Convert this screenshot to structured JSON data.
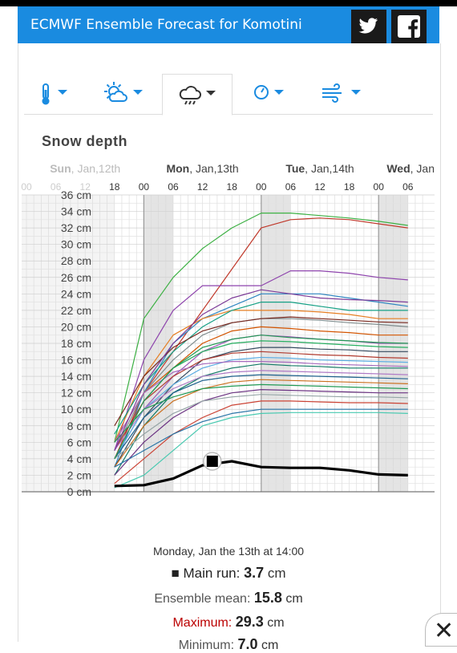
{
  "header": {
    "title": "ECMWF Ensemble Forecast for Komotini"
  },
  "social": {
    "twitter_icon": "twitter-icon",
    "facebook_icon": "facebook-icon"
  },
  "tabs": [
    {
      "icon": "thermometer-icon",
      "active": false
    },
    {
      "icon": "sun-cloud-icon",
      "active": false
    },
    {
      "icon": "rain-cloud-icon",
      "active": true
    },
    {
      "icon": "gauge-icon",
      "active": false
    },
    {
      "icon": "wind-icon",
      "active": false
    }
  ],
  "section": {
    "title": "Snow depth"
  },
  "chart_data": {
    "type": "line",
    "ylabel_unit": "cm",
    "ylim": [
      0,
      36
    ],
    "y_ticks": [
      "0 cm",
      "2 cm",
      "4 cm",
      "6 cm",
      "8 cm",
      "10 cm",
      "12 cm",
      "14 cm",
      "16 cm",
      "18 cm",
      "20 cm",
      "22 cm",
      "24 cm",
      "26 cm",
      "28 cm",
      "30 cm",
      "32 cm",
      "34 cm",
      "36 cm"
    ],
    "day_labels": [
      {
        "day": "Sun",
        "date": ", Jan,12th"
      },
      {
        "day": "Mon",
        "date": ", Jan,13th"
      },
      {
        "day": "Tue",
        "date": ", Jan,14th"
      },
      {
        "day": "Wed",
        "date": ", Jan"
      }
    ],
    "hour_labels": [
      "00",
      "06",
      "12",
      "18",
      "00",
      "06",
      "12",
      "18",
      "00",
      "06",
      "12",
      "18",
      "00",
      "06"
    ],
    "x_hours": [
      0,
      6,
      12,
      18,
      24,
      30,
      36,
      42,
      48,
      54,
      60,
      66,
      72,
      78
    ],
    "main_run": {
      "name": "Main run",
      "x": [
        18,
        24,
        30,
        36,
        42,
        48,
        54,
        60,
        66,
        72,
        78
      ],
      "values": [
        0.7,
        0.8,
        1.6,
        3.2,
        3.7,
        3.0,
        2.9,
        2.9,
        2.6,
        2.1,
        2.0
      ]
    },
    "ensemble": {
      "x": [
        18,
        24,
        30,
        36,
        42,
        48,
        54,
        60,
        66,
        72,
        78
      ],
      "members": [
        [
          6,
          21,
          26,
          29.5,
          32,
          33.8,
          33.8,
          33.5,
          33.2,
          32.8,
          32.3
        ],
        [
          4,
          12,
          17,
          22,
          27,
          32,
          33,
          33.2,
          33,
          32.5,
          32
        ],
        [
          5,
          16,
          22,
          25,
          25,
          25,
          26.8,
          26.8,
          26.5,
          26,
          25.7
        ],
        [
          3,
          12,
          18,
          21,
          22.5,
          24,
          24,
          24,
          23.5,
          23,
          22.5
        ],
        [
          6,
          14,
          19,
          21,
          22,
          22,
          22,
          21.8,
          21.5,
          21,
          21
        ],
        [
          7,
          13,
          17,
          20,
          22,
          23,
          23,
          22.5,
          22,
          22,
          22
        ],
        [
          5,
          12,
          16,
          19,
          20.5,
          21,
          21,
          20.8,
          20.5,
          20.3,
          20
        ],
        [
          6,
          12,
          15,
          18,
          19.5,
          20,
          19.8,
          19.5,
          19.3,
          19,
          19
        ],
        [
          4,
          10,
          14,
          17,
          18.5,
          19,
          18.8,
          18.5,
          18.3,
          18,
          18
        ],
        [
          5,
          11,
          15,
          17,
          18,
          18.3,
          18.2,
          18,
          17.8,
          17.6,
          17.5
        ],
        [
          3,
          9,
          13,
          16,
          17,
          17.5,
          17.5,
          17.3,
          17.2,
          17,
          17
        ],
        [
          5,
          11,
          14,
          16,
          16.8,
          17,
          16.8,
          16.6,
          16.5,
          16.3,
          16.2
        ],
        [
          4,
          10,
          13,
          15,
          16,
          16.3,
          16.2,
          16,
          15.9,
          15.8,
          15.7
        ],
        [
          6,
          12,
          14.5,
          15.5,
          15.8,
          15.8,
          15.7,
          15.5,
          15.4,
          15.3,
          15.2
        ],
        [
          2,
          8,
          12,
          14,
          15,
          15.5,
          15.3,
          15.2,
          15,
          15,
          15
        ],
        [
          5,
          10,
          12.5,
          14,
          14.5,
          14.7,
          14.6,
          14.5,
          14.4,
          14.3,
          14.2
        ],
        [
          4,
          9,
          12,
          13.5,
          14,
          14.2,
          14.1,
          14,
          13.9,
          13.8,
          13.7
        ],
        [
          3,
          8,
          11,
          12.5,
          13.3,
          13.6,
          13.5,
          13.4,
          13.3,
          13.2,
          13.1
        ],
        [
          6,
          10,
          11.5,
          12.5,
          12.8,
          13,
          12.9,
          12.8,
          12.7,
          12.6,
          12.5
        ],
        [
          2,
          6,
          9,
          11,
          12,
          12.4,
          12.3,
          12.2,
          12.1,
          12,
          12
        ],
        [
          4,
          7,
          9.5,
          11,
          11.5,
          11.8,
          11.7,
          11.6,
          11.5,
          11.5,
          11.4
        ],
        [
          1,
          4,
          7,
          9,
          10.5,
          11,
          11,
          10.9,
          10.8,
          10.8,
          10.7
        ],
        [
          3,
          5,
          7,
          8.5,
          9.5,
          10,
          10,
          10,
          10,
          10,
          10
        ],
        [
          0.5,
          2,
          5,
          8,
          9,
          9.5,
          9.6,
          9.6,
          9.6,
          9.6,
          9.5
        ],
        [
          8,
          14,
          17.5,
          19.5,
          20.5,
          21,
          21.2,
          21,
          20.8,
          20.6,
          20.5
        ],
        [
          5,
          13,
          18,
          21.5,
          23.5,
          24.5,
          24,
          23.5,
          23.3,
          23.2,
          23
        ],
        [
          4,
          11,
          15,
          17.5,
          18.5,
          19,
          18.7,
          18.5,
          18.3,
          18.1,
          18
        ]
      ]
    }
  },
  "readout": {
    "time": "Monday, Jan the 13th at 14:00",
    "main_label": "Main run:",
    "main_value": "3.7",
    "mean_label": "Ensemble mean:",
    "mean_value": "15.8",
    "max_label": "Maximum:",
    "max_value": "29.3",
    "min_label": "Minimum:",
    "min_value": "7.0",
    "unit": "cm",
    "main_marker": "■"
  },
  "close": {
    "icon": "close-icon",
    "glyph": "✕"
  },
  "colors": {
    "header_bg": "#1a8be0",
    "member_palette": [
      "#3cb043",
      "#c0392b",
      "#8e44ad",
      "#2e86c1",
      "#e67e22",
      "#16a085",
      "#7f8c8d",
      "#d35400",
      "#9b59b6",
      "#27ae60",
      "#34495e",
      "#b03a2e",
      "#5dade2",
      "#a569bd",
      "#117a65",
      "#af7ac5",
      "#1f618d",
      "#ca6f1e",
      "#239b56",
      "#6c3483",
      "#95a5a6",
      "#cb4335",
      "#2874a6",
      "#48c9b0",
      "#78281f",
      "#7d3c98",
      "#229954"
    ]
  }
}
